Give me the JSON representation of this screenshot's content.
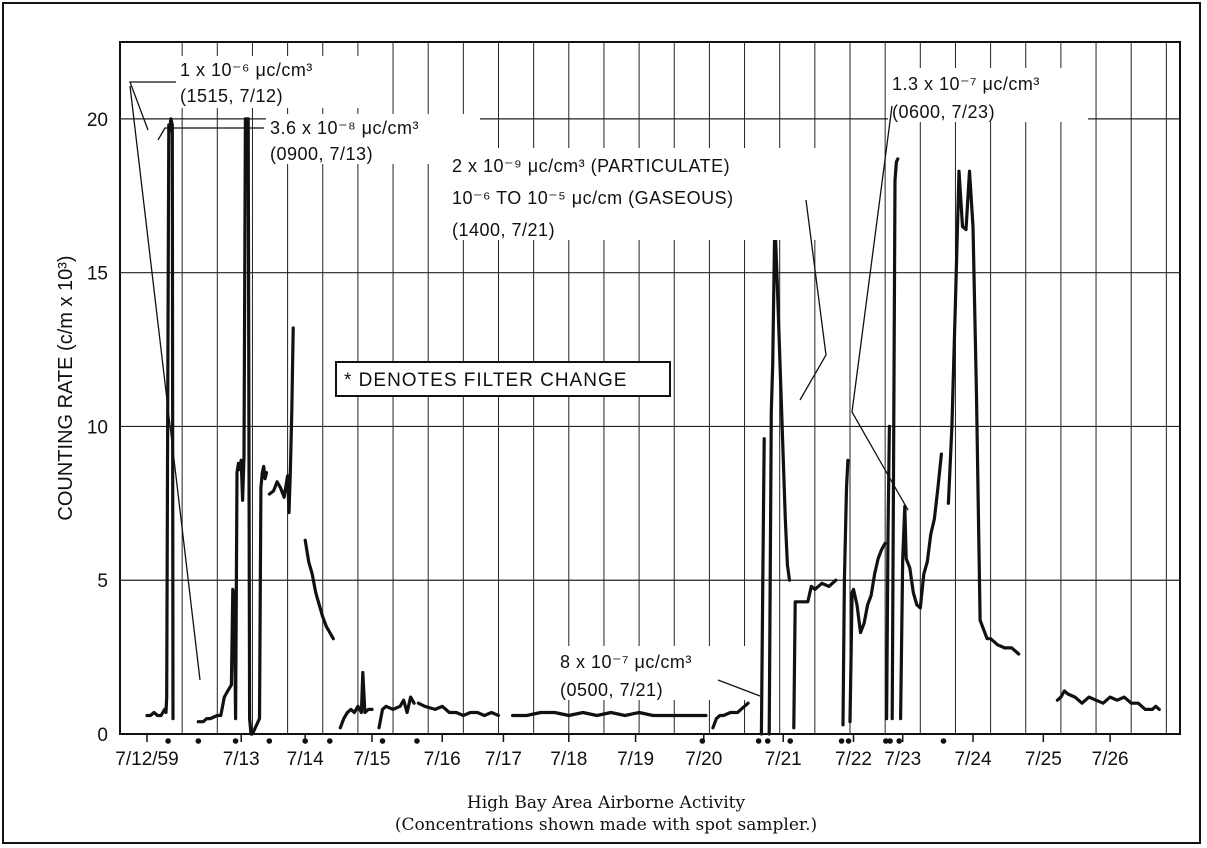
{
  "chart_data": {
    "type": "line",
    "title": "",
    "caption_line1": "High Bay Area Airborne Activity",
    "caption_line2": "(Concentrations shown made with spot sampler.)",
    "ylabel": "COUNTING RATE (c/m x 10³)",
    "xlabel": "",
    "ylim": [
      0,
      22.5
    ],
    "yticks": [
      0,
      5,
      10,
      15,
      20
    ],
    "xlim": [
      0,
      14.65
    ],
    "xticks": [
      {
        "label": "7/12/59",
        "x": 0
      },
      {
        "label": "7/13",
        "x": 1.34
      },
      {
        "label": "7/14",
        "x": 2.25
      },
      {
        "label": "7/15",
        "x": 3.2
      },
      {
        "label": "7/16",
        "x": 4.2
      },
      {
        "label": "7/17",
        "x": 5.07
      },
      {
        "label": "7/18",
        "x": 6
      },
      {
        "label": "7/19",
        "x": 6.95
      },
      {
        "label": "7/20",
        "x": 7.92
      },
      {
        "label": "7/21",
        "x": 9.05
      },
      {
        "label": "7/22",
        "x": 10.05
      },
      {
        "label": "7/23",
        "x": 10.75
      },
      {
        "label": "7/24",
        "x": 11.75
      },
      {
        "label": "7/25",
        "x": 12.75
      },
      {
        "label": "7/26",
        "x": 13.7
      }
    ],
    "grid": true,
    "legend_text": "* DENOTES FILTER CHANGE",
    "filter_changes": [
      0.3,
      0.73,
      1.26,
      1.74,
      2.25,
      2.6,
      3.35,
      3.84,
      7.9,
      8.7,
      8.83,
      9.15,
      9.88,
      9.98,
      10.51,
      10.57,
      10.7,
      11.33
    ],
    "series": [
      {
        "name": "",
        "x": [
          0,
          0.05,
          0.1,
          0.15,
          0.2,
          0.25,
          0.27,
          0.28,
          0.3,
          0.31,
          0.32,
          0.34,
          0.36,
          0.37
        ],
        "y": [
          0.6,
          0.6,
          0.7,
          0.6,
          0.6,
          0.8,
          0.7,
          1.2,
          14,
          19.8,
          19.6,
          20,
          19.8,
          0.5
        ]
      },
      {
        "name": "",
        "x": [
          0.73,
          0.8,
          0.85,
          0.9,
          1.0,
          1.05,
          1.1,
          1.15,
          1.2,
          1.22,
          1.24,
          1.26,
          1.28,
          1.3,
          1.32,
          1.34,
          1.36,
          1.38,
          1.4,
          1.42,
          1.44,
          1.46,
          1.48,
          1.5,
          1.6,
          1.62,
          1.64,
          1.66,
          1.68,
          1.7
        ],
        "y": [
          0.4,
          0.4,
          0.5,
          0.5,
          0.6,
          0.6,
          1.2,
          1.4,
          1.6,
          4.7,
          4.5,
          0.5,
          8.5,
          8.8,
          8.6,
          8.9,
          7.6,
          9,
          20,
          20,
          20,
          0.5,
          0,
          0,
          0.5,
          8,
          8.5,
          8.7,
          8.3,
          8.5
        ]
      },
      {
        "name": "",
        "x": [
          1.74,
          1.8,
          1.85,
          1.9,
          1.95,
          2.0,
          2.02,
          2.04,
          2.06,
          2.08
        ],
        "y": [
          7.8,
          7.9,
          8.2,
          8.0,
          7.7,
          8.4,
          7.2,
          8.6,
          10.5,
          13.2
        ]
      },
      {
        "name": "",
        "x": [
          2.25,
          2.3,
          2.35,
          2.4,
          2.45,
          2.5,
          2.55,
          2.6,
          2.65
        ],
        "y": [
          6.3,
          5.6,
          5.2,
          4.6,
          4.2,
          3.8,
          3.5,
          3.3,
          3.1
        ]
      },
      {
        "name": "",
        "x": [
          2.75,
          2.8,
          2.85,
          2.9,
          2.95,
          3.0,
          3.05,
          3.07,
          3.1,
          3.15,
          3.2
        ],
        "y": [
          0.2,
          0.5,
          0.7,
          0.8,
          0.7,
          0.9,
          0.7,
          2.0,
          0.7,
          0.8,
          0.8
        ]
      },
      {
        "name": "",
        "x": [
          3.3,
          3.35,
          3.4,
          3.5,
          3.6,
          3.65,
          3.7,
          3.75,
          3.8
        ],
        "y": [
          0.2,
          0.8,
          0.9,
          0.8,
          0.9,
          1.1,
          0.7,
          1.2,
          1.0
        ]
      },
      {
        "name": "",
        "x": [
          3.86,
          3.95,
          4.1,
          4.2,
          4.3,
          4.4,
          4.5,
          4.6,
          4.7,
          4.8,
          4.9,
          5.0
        ],
        "y": [
          1.0,
          0.9,
          0.8,
          0.9,
          0.7,
          0.7,
          0.6,
          0.7,
          0.7,
          0.6,
          0.7,
          0.6
        ]
      },
      {
        "name": "",
        "x": [
          5.2,
          5.4,
          5.6,
          5.8,
          6.0,
          6.2,
          6.4,
          6.6,
          6.8,
          7.0,
          7.2,
          7.4,
          7.6,
          7.8,
          7.95
        ],
        "y": [
          0.6,
          0.6,
          0.7,
          0.7,
          0.6,
          0.7,
          0.6,
          0.7,
          0.6,
          0.7,
          0.6,
          0.6,
          0.6,
          0.6,
          0.6
        ]
      },
      {
        "name": "",
        "x": [
          8.05,
          8.1,
          8.15,
          8.2,
          8.3,
          8.4,
          8.5,
          8.55
        ],
        "y": [
          0.2,
          0.5,
          0.6,
          0.6,
          0.7,
          0.7,
          0.9,
          1.0
        ]
      },
      {
        "name": "",
        "x": [
          8.74,
          8.76,
          8.78
        ],
        "y": [
          0,
          5.0,
          9.6
        ]
      },
      {
        "name": "",
        "x": [
          8.85,
          8.88,
          8.9,
          8.93,
          8.96,
          8.99,
          9.02,
          9.05,
          9.08,
          9.11,
          9.14
        ],
        "y": [
          0,
          10.5,
          12.0,
          16.7,
          15.0,
          13.0,
          11.0,
          9.0,
          7.0,
          5.5,
          5.0
        ]
      },
      {
        "name": "",
        "x": [
          9.2,
          9.22,
          9.3,
          9.4,
          9.45,
          9.5,
          9.6,
          9.7,
          9.8
        ],
        "y": [
          0.2,
          4.3,
          4.3,
          4.3,
          4.8,
          4.7,
          4.9,
          4.8,
          5.0
        ]
      },
      {
        "name": "",
        "x": [
          9.9,
          9.92,
          9.95,
          9.97
        ],
        "y": [
          0.3,
          5.0,
          8.0,
          8.9
        ]
      },
      {
        "name": "",
        "x": [
          10.0,
          10.03,
          10.05,
          10.1,
          10.15,
          10.2,
          10.25,
          10.3,
          10.35,
          10.4,
          10.45,
          10.5
        ],
        "y": [
          0.4,
          4.6,
          4.7,
          4.2,
          3.3,
          3.6,
          4.2,
          4.5,
          5.2,
          5.7,
          6.0,
          6.2
        ]
      },
      {
        "name": "",
        "x": [
          10.52,
          10.54,
          10.56
        ],
        "y": [
          0.5,
          6.5,
          10.0
        ]
      },
      {
        "name": "",
        "x": [
          10.6,
          10.62,
          10.64,
          10.66,
          10.68
        ],
        "y": [
          0.5,
          9.0,
          18.0,
          18.6,
          18.7
        ]
      },
      {
        "name": "",
        "x": [
          10.72,
          10.75,
          10.78,
          10.8,
          10.85,
          10.9,
          10.95,
          11.0,
          11.05,
          11.1,
          11.15,
          11.2,
          11.25,
          11.3
        ],
        "y": [
          0.5,
          5.7,
          7.4,
          5.7,
          5.4,
          4.6,
          4.2,
          4.1,
          5.2,
          5.6,
          6.5,
          7.0,
          8.0,
          9.1
        ]
      },
      {
        "name": "",
        "x": [
          11.4,
          11.45,
          11.5,
          11.55,
          11.6,
          11.65,
          11.7,
          11.75,
          11.8,
          11.85,
          11.9,
          11.95,
          12.0,
          12.05,
          12.1,
          12.2,
          12.3,
          12.4
        ],
        "y": [
          7.5,
          10.0,
          14.0,
          18.3,
          16.5,
          16.4,
          18.3,
          16.5,
          11.0,
          3.7,
          3.4,
          3.1,
          3.1,
          3.0,
          2.9,
          2.8,
          2.8,
          2.6
        ]
      },
      {
        "name": "",
        "x": [
          12.95,
          13.0,
          13.05,
          13.1,
          13.2,
          13.3,
          13.4,
          13.5,
          13.6,
          13.7,
          13.8,
          13.9,
          14.0,
          14.1,
          14.2,
          14.3,
          14.35,
          14.4
        ],
        "y": [
          1.1,
          1.2,
          1.4,
          1.3,
          1.2,
          1.0,
          1.2,
          1.1,
          1.0,
          1.2,
          1.1,
          1.2,
          1.0,
          1.0,
          0.8,
          0.8,
          0.9,
          0.8
        ]
      }
    ],
    "annotations": [
      {
        "lines": [
          "1 x 10⁻⁶ μc/cm³",
          "(1515, 7/12)"
        ]
      },
      {
        "lines": [
          "3.6 x 10⁻⁸ μc/cm³",
          "(0900, 7/13)"
        ]
      },
      {
        "lines": [
          "2 x 10⁻⁹ μc/cm³ (PARTICULATE)",
          "10⁻⁶ TO 10⁻⁵ μc/cm (GASEOUS)",
          "(1400, 7/21)"
        ]
      },
      {
        "lines": [
          "1.3 x 10⁻⁷ μc/cm³",
          "(0600, 7/23)"
        ]
      },
      {
        "lines": [
          "8 x 10⁻⁷ μc/cm³",
          "(0500, 7/21)"
        ]
      }
    ]
  }
}
